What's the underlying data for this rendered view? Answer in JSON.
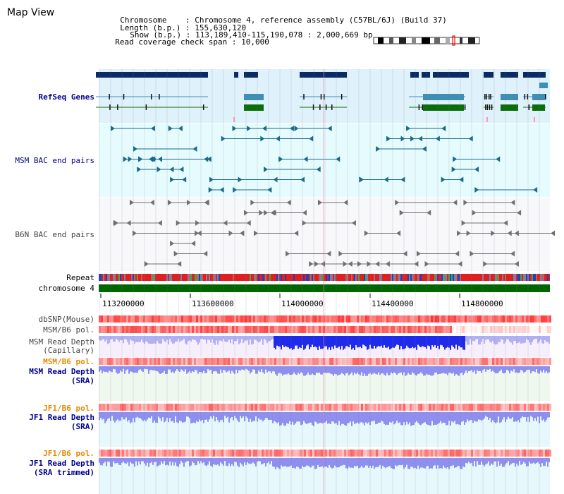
{
  "header": {
    "title": "Map View",
    "chromosome_label": "Chromosome",
    "chromosome_value": "Chromosome 4, reference assembly (C57BL/6J) (Build 37)",
    "length_label": "Length (b.p.)",
    "length_value": "155,630,120",
    "show_label": "Show (b.p.)",
    "show_value": "113,189,410-115,190,078 : 2,000,669 bp",
    "coverage_label": "Read coverage check span",
    "coverage_value": "10,000"
  },
  "tracks": {
    "refseq": "RefSeq Genes",
    "msm_bac": "MSM BAC end pairs",
    "b6n_bac": "B6N BAC end pairs",
    "repeat": "Repeat",
    "chromosome": "chromosome 4",
    "dbsnp": "dbSNP(Mouse)",
    "msm_b6_pol": "MSM/B6 pol.",
    "msm_depth_cap_1": "MSM Read Depth",
    "msm_depth_cap_2": "(Capillary)",
    "msm_b6_pol_2": "MSM/B6 pol.",
    "msm_depth_sra_1": "MSM Read Depth",
    "msm_depth_sra_2": "(SRA)",
    "jf1_b6_pol": "JF1/B6 pol.",
    "jf1_depth_sra_1": "JF1 Read Depth",
    "jf1_depth_sra_2": "(SRA)",
    "jf1_b6_pol_2": "JF1/B6 pol.",
    "jf1_depth_trim_1": "JF1 Read Depth",
    "jf1_depth_trim_2": "(SRA trimmed)"
  },
  "axis": {
    "ticks": [
      "113200000",
      "113600000",
      "114000000",
      "114400000",
      "114800000"
    ]
  },
  "colors": {
    "gene_dark": "#0a2a66",
    "gene_mid": "#3f8fb5",
    "gene_green": "#0a6e0a",
    "refseq_bg": "#dff1fb",
    "msm_bg": "#e6fbfd",
    "b6n_bg": "#f8f8fa",
    "repeat_red": "#e02020",
    "chrom_green": "#006600",
    "snp_red": "#ff2a2a",
    "depth_blue": "#1f2bea",
    "depth_light": "#8f8ff0",
    "highlight_pink": "#ff99bb"
  }
}
